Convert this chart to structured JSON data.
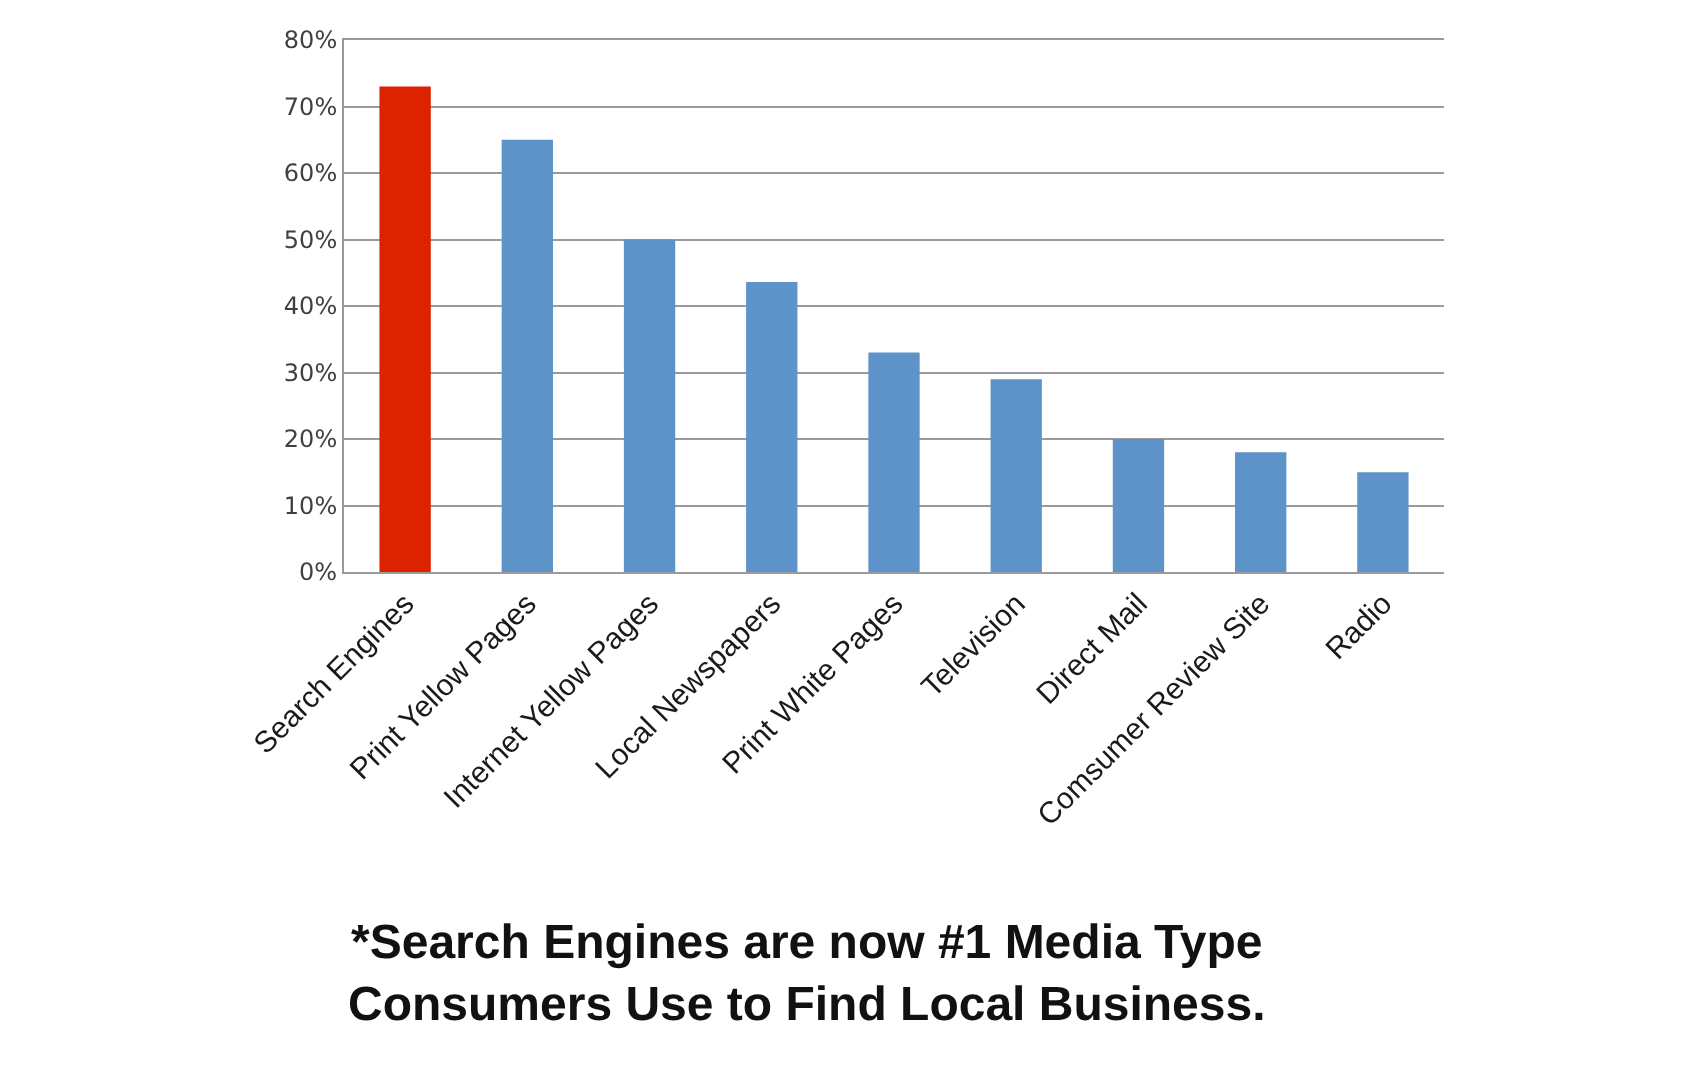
{
  "chart_data": {
    "type": "bar",
    "categories": [
      "Search Engines",
      "Print Yellow Pages",
      "Internet Yellow Pages",
      "Local Newspapers",
      "Print White Pages",
      "Television",
      "Direct Mail",
      "Comsumer Review Site",
      "Radio"
    ],
    "values": [
      73,
      65,
      50,
      43.6,
      33,
      29,
      20,
      18,
      15
    ],
    "colors": [
      "#dd2200",
      "#5e93c9",
      "#5e93c9",
      "#5e93c9",
      "#5e93c9",
      "#5e93c9",
      "#5e93c9",
      "#5e93c9",
      "#5e93c9"
    ],
    "ylim": [
      0,
      80
    ],
    "yticks": [
      {
        "value": 0,
        "label": "0%"
      },
      {
        "value": 10,
        "label": "10%"
      },
      {
        "value": 20,
        "label": "20%"
      },
      {
        "value": 30,
        "label": "30%"
      },
      {
        "value": 40,
        "label": "40%"
      },
      {
        "value": 50,
        "label": "50%"
      },
      {
        "value": 60,
        "label": "60%"
      },
      {
        "value": 70,
        "label": "70%"
      },
      {
        "value": 80,
        "label": "80%"
      }
    ],
    "grid": "y",
    "annotations": [
      "*Search Engines are now #1 Media Type\nConsumers Use to Find Local Business."
    ]
  }
}
